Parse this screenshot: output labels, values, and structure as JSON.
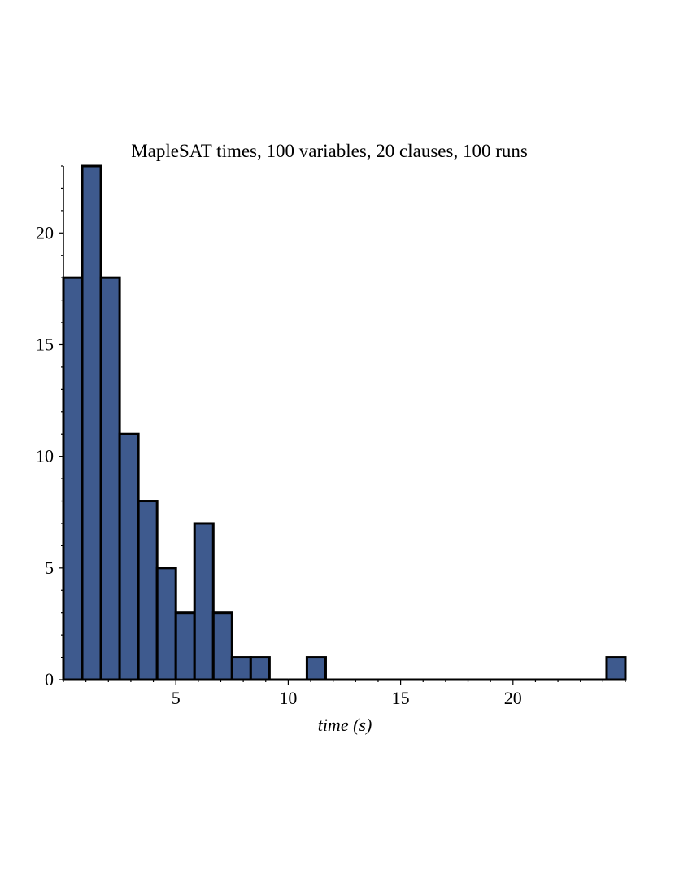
{
  "chart_data": {
    "type": "bar",
    "title": "MapleSAT times, 100 variables, 20 clauses, 100 runs",
    "xlabel": "time (s)",
    "ylabel": "",
    "bin_width": 0.833,
    "bins": [
      {
        "start": 0.0,
        "end": 0.833,
        "count": 18
      },
      {
        "start": 0.833,
        "end": 1.667,
        "count": 23
      },
      {
        "start": 1.667,
        "end": 2.5,
        "count": 18
      },
      {
        "start": 2.5,
        "end": 3.333,
        "count": 11
      },
      {
        "start": 3.333,
        "end": 4.167,
        "count": 8
      },
      {
        "start": 4.167,
        "end": 5.0,
        "count": 5
      },
      {
        "start": 5.0,
        "end": 5.833,
        "count": 3
      },
      {
        "start": 5.833,
        "end": 6.667,
        "count": 7
      },
      {
        "start": 6.667,
        "end": 7.5,
        "count": 3
      },
      {
        "start": 7.5,
        "end": 8.333,
        "count": 1
      },
      {
        "start": 8.333,
        "end": 9.167,
        "count": 1
      },
      {
        "start": 9.167,
        "end": 10.0,
        "count": 0
      },
      {
        "start": 10.0,
        "end": 10.833,
        "count": 0
      },
      {
        "start": 10.833,
        "end": 11.667,
        "count": 1
      },
      {
        "start": 11.667,
        "end": 24.167,
        "count": 0
      },
      {
        "start": 24.167,
        "end": 25.0,
        "count": 1
      }
    ],
    "xlim": [
      0,
      25
    ],
    "ylim": [
      0,
      23
    ],
    "xticks": [
      5,
      10,
      15,
      20
    ],
    "yticks": [
      0,
      5,
      10,
      15,
      20
    ],
    "bar_color": "#3e5a8e",
    "grid": false,
    "legend": "none"
  }
}
